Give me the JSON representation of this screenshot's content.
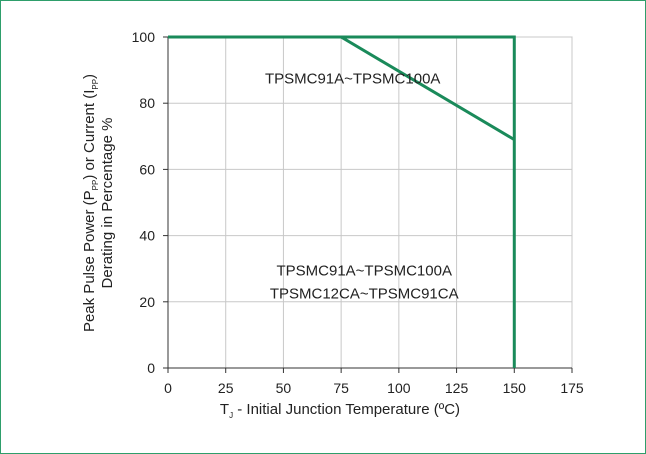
{
  "chart_data": {
    "type": "line",
    "xlabel": {
      "main": "T",
      "sub": "J",
      "rest": " - Initial Junction Temperature (ºC)"
    },
    "ylabel": {
      "line1_parts": [
        "Peak Pulse Power (P",
        "PP",
        ") or Current (I",
        "PP",
        ")"
      ],
      "line2": "Derating in Percentage %"
    },
    "xlim": [
      0,
      175
    ],
    "ylim": [
      0,
      100
    ],
    "xticks": [
      0,
      25,
      50,
      75,
      100,
      125,
      150,
      175
    ],
    "yticks": [
      0,
      20,
      40,
      60,
      80,
      100
    ],
    "grid": true,
    "line_color": "#1a8a5a",
    "series": [
      {
        "x": [
          0,
          75,
          150
        ],
        "y": [
          100,
          100,
          69
        ]
      },
      {
        "x": [
          0,
          150,
          150
        ],
        "y": [
          100,
          100,
          0
        ]
      }
    ],
    "annotations": [
      {
        "text": "TPSMC91A~TPSMC100A",
        "x": 80,
        "y": 86
      },
      {
        "text": "TPSMC91A~TPSMC100A",
        "x": 85,
        "y": 28
      },
      {
        "text": "TPSMC12CA~TPSMC91CA",
        "x": 85,
        "y": 21
      }
    ]
  }
}
